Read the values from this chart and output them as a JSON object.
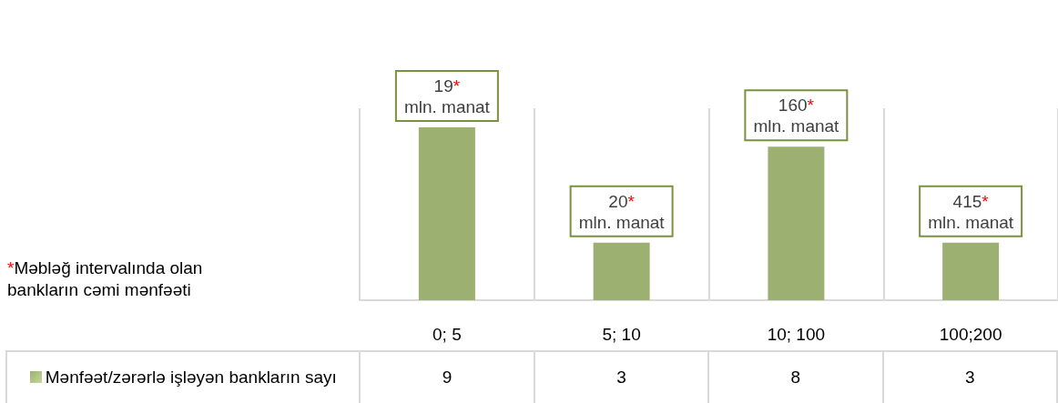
{
  "chart_data": {
    "type": "bar",
    "categories": [
      "0; 5",
      "5; 10",
      "10; 100",
      "100;200"
    ],
    "series": [
      {
        "name": "Mənfəət/zərərlə işləyən bankların sayı",
        "color": "#9cb072",
        "values": [
          9,
          3,
          8,
          3
        ]
      }
    ],
    "annotations": [
      {
        "text": "19*\nmln. manat",
        "x": "0; 5",
        "y": 9
      },
      {
        "text": "20*\nmln. manat",
        "x": "5; 10",
        "y": 3
      },
      {
        "text": "160*\nmln. manat",
        "x": "10; 100",
        "y": 8
      },
      {
        "text": "415*\nmln. manat",
        "x": "100;200",
        "y": 3
      },
      "*Məbləğ intervalında  olan bankların cəmi mənfəəti"
    ],
    "data_labels": true,
    "grid": "x",
    "legend": "bottom",
    "tick_labels": "x"
  }
}
